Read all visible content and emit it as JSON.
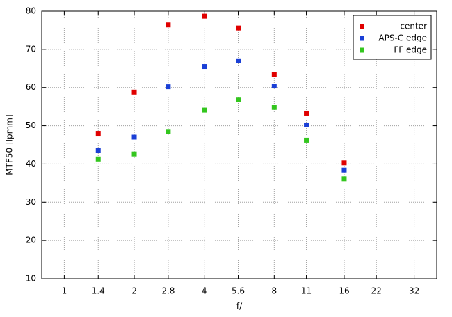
{
  "chart_data": {
    "type": "scatter",
    "xlabel": "f/",
    "ylabel": "MTF50 [lpmm]",
    "x": [
      1.4,
      2,
      2.8,
      4,
      5.6,
      8,
      11,
      16
    ],
    "series": [
      {
        "name": "center",
        "color": "#e00000",
        "values": [
          48,
          58.8,
          76.4,
          78.7,
          75.6,
          63.4,
          53.3,
          40.3
        ]
      },
      {
        "name": "APS-C edge",
        "color": "#1a3fd6",
        "values": [
          43.6,
          47,
          60.2,
          65.5,
          67,
          60.4,
          50.2,
          38.4
        ]
      },
      {
        "name": "FF edge",
        "color": "#33c61e",
        "values": [
          41.3,
          42.6,
          48.5,
          54.1,
          56.9,
          54.8,
          46.2,
          36.1
        ]
      }
    ],
    "xscale": "log",
    "xlim": [
      0.8,
      40
    ],
    "xticks": [
      1,
      1.4,
      2,
      2.8,
      4,
      5.6,
      8,
      11,
      16,
      22,
      32
    ],
    "ylim": [
      10,
      80
    ],
    "yticks": [
      10,
      20,
      30,
      40,
      50,
      60,
      70,
      80
    ],
    "grid": true,
    "legend": "top-right"
  }
}
